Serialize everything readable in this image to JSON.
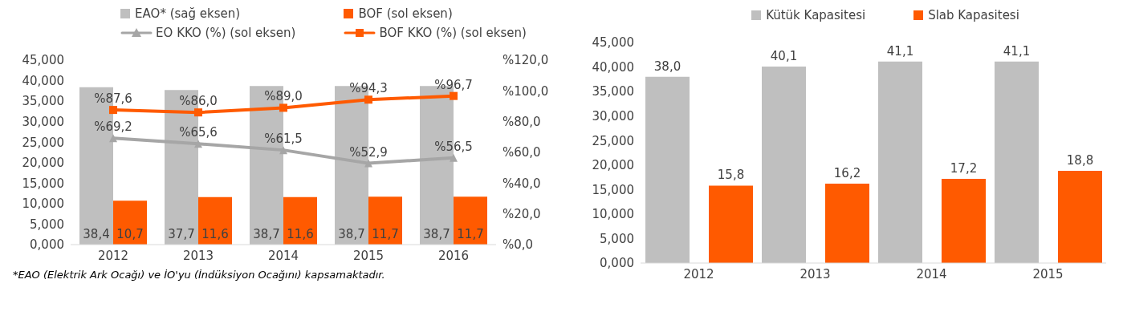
{
  "chart_data": [
    {
      "type": "bar",
      "legend": "top",
      "categories": [
        "2012",
        "2013",
        "2014",
        "2015",
        "2016"
      ],
      "ylim": [
        0,
        45
      ],
      "yticks": [
        {
          "value": 0,
          "label": "0,000"
        },
        {
          "value": 5,
          "label": "5,000"
        },
        {
          "value": 10,
          "label": "10,000"
        },
        {
          "value": 15,
          "label": "15,000"
        },
        {
          "value": 20,
          "label": "20,000"
        },
        {
          "value": 25,
          "label": "25,000"
        },
        {
          "value": 30,
          "label": "30,000"
        },
        {
          "value": 35,
          "label": "35,000"
        },
        {
          "value": 40,
          "label": "40,000"
        },
        {
          "value": 45,
          "label": "45,000"
        }
      ],
      "y2lim": [
        0,
        120
      ],
      "y2ticks": [
        {
          "value": 0,
          "label": "%0,0"
        },
        {
          "value": 20,
          "label": "%20,0"
        },
        {
          "value": 40,
          "label": "%40,0"
        },
        {
          "value": 60,
          "label": "%60,0"
        },
        {
          "value": 80,
          "label": "%80,0"
        },
        {
          "value": 100,
          "label": "%100,0"
        },
        {
          "value": 120,
          "label": "%120,0"
        }
      ],
      "series": [
        {
          "name": "EAO* (sağ eksen)",
          "color": "#bfbfbf",
          "values": [
            38.4,
            37.7,
            38.7,
            38.7,
            38.7
          ],
          "value_labels": [
            "38,4",
            "37,7",
            "38,7",
            "38,7",
            "38,7"
          ]
        },
        {
          "name": "BOF (sol eksen)",
          "color": "#ff5a00",
          "values": [
            10.7,
            11.6,
            11.6,
            11.7,
            11.7
          ],
          "value_labels": [
            "10,7",
            "11,6",
            "11,6",
            "11,7",
            "11,7"
          ]
        },
        {
          "name": "EO KKO (%) (sol eksen)",
          "type": "line",
          "axis": "y2",
          "marker": "triangle",
          "color": "#a6a6a6",
          "values": [
            69.2,
            65.6,
            61.5,
            52.9,
            56.5
          ],
          "value_labels": [
            "%69,2",
            "%65,6",
            "%61,5",
            "%52,9",
            "%56,5"
          ]
        },
        {
          "name": "BOF KKO (%) (sol eksen)",
          "type": "line",
          "axis": "y2",
          "marker": "square",
          "color": "#ff5a00",
          "values": [
            87.6,
            86.0,
            89.0,
            94.3,
            96.7
          ],
          "value_labels": [
            "%87,6",
            "%86,0",
            "%89,0",
            "%94,3",
            "%96,7"
          ]
        }
      ],
      "annotations": [
        "*EAO (Elektrik Ark Ocağı) ve İO'yu (İndüksiyon Ocağını) kapsamaktadır."
      ]
    },
    {
      "type": "bar",
      "legend": "top",
      "categories": [
        "2012",
        "2013",
        "2014",
        "2015"
      ],
      "ylim": [
        0,
        45
      ],
      "yticks": [
        {
          "value": 0,
          "label": "0,000"
        },
        {
          "value": 5,
          "label": "5,000"
        },
        {
          "value": 10,
          "label": "10,000"
        },
        {
          "value": 15,
          "label": "15,000"
        },
        {
          "value": 20,
          "label": "20,000"
        },
        {
          "value": 25,
          "label": "25,000"
        },
        {
          "value": 30,
          "label": "30,000"
        },
        {
          "value": 35,
          "label": "35,000"
        },
        {
          "value": 40,
          "label": "40,000"
        },
        {
          "value": 45,
          "label": "45,000"
        }
      ],
      "series": [
        {
          "name": "Kütük Kapasitesi",
          "color": "#bfbfbf",
          "values": [
            38.0,
            40.1,
            41.1,
            41.1
          ],
          "value_labels": [
            "38,0",
            "40,1",
            "41,1",
            "41,1"
          ]
        },
        {
          "name": "Slab Kapasitesi",
          "color": "#ff5a00",
          "values": [
            15.8,
            16.2,
            17.2,
            18.8
          ],
          "value_labels": [
            "15,8",
            "16,2",
            "17,2",
            "18,8"
          ]
        }
      ]
    }
  ]
}
